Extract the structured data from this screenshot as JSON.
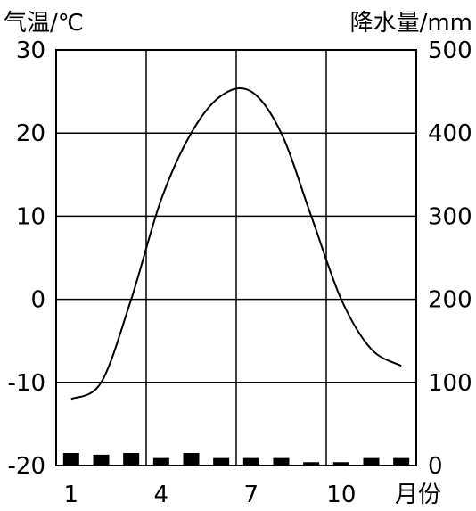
{
  "chart_data": {
    "type": "bar+line",
    "y_left": {
      "label": "气温/℃",
      "ticks": [
        "30",
        "20",
        "10",
        "0",
        "-10",
        "-20"
      ],
      "range": [
        -20,
        30
      ]
    },
    "y_right": {
      "label": "降水量/mm",
      "ticks": [
        "500",
        "400",
        "300",
        "200",
        "100",
        "0"
      ],
      "range": [
        0,
        500
      ]
    },
    "x": {
      "label": "月份",
      "tick_labels": [
        "1",
        "4",
        "7",
        "10"
      ],
      "months": [
        1,
        2,
        3,
        4,
        5,
        6,
        7,
        8,
        9,
        10,
        11,
        12
      ]
    },
    "grid": true,
    "series": [
      {
        "type": "line",
        "axis": "left",
        "values": [
          -12,
          -10,
          0,
          12,
          20,
          24.5,
          25,
          20,
          10,
          0,
          -6,
          -8
        ]
      },
      {
        "type": "bar",
        "axis": "right",
        "values": [
          15,
          13,
          15,
          9,
          15,
          9,
          9,
          9,
          4,
          4,
          9,
          9
        ]
      }
    ]
  }
}
